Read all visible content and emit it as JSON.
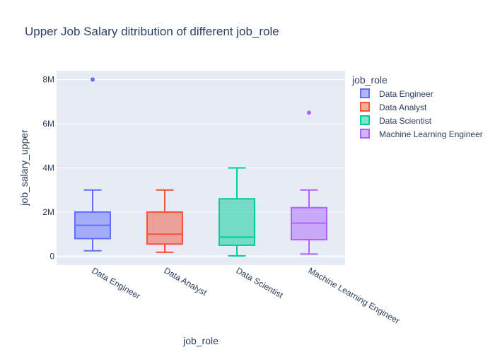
{
  "chart_data": {
    "type": "box",
    "title": "Upper Job Salary ditribution of different job_role",
    "xlabel": "job_role",
    "ylabel": "job_salary_upper",
    "ylim": [
      -400000,
      8400000
    ],
    "yticks": [
      0,
      2000000,
      4000000,
      6000000,
      8000000
    ],
    "ytick_labels": [
      "0",
      "2M",
      "4M",
      "6M",
      "8M"
    ],
    "grid": true,
    "legend_title": "job_role",
    "legend_position": "right",
    "categories": [
      "Data Engineer",
      "Data Analyst",
      "Data Scientist",
      "Machine Learning Engineer"
    ],
    "series": [
      {
        "name": "Data Engineer",
        "color": "#636efa",
        "min": 250000,
        "q1": 800000,
        "median": 1400000,
        "q3": 2000000,
        "max": 3000000,
        "outliers": [
          8000000
        ]
      },
      {
        "name": "Data Analyst",
        "color": "#ef553b",
        "min": 180000,
        "q1": 550000,
        "median": 1000000,
        "q3": 2000000,
        "max": 3000000,
        "outliers": []
      },
      {
        "name": "Data Scientist",
        "color": "#00cc96",
        "min": 20000,
        "q1": 500000,
        "median": 870000,
        "q3": 2600000,
        "max": 4000000,
        "outliers": []
      },
      {
        "name": "Machine Learning Engineer",
        "color": "#ab63fa",
        "min": 100000,
        "q1": 750000,
        "median": 1500000,
        "q3": 2200000,
        "max": 3000000,
        "outliers": [
          6500000
        ]
      }
    ]
  }
}
